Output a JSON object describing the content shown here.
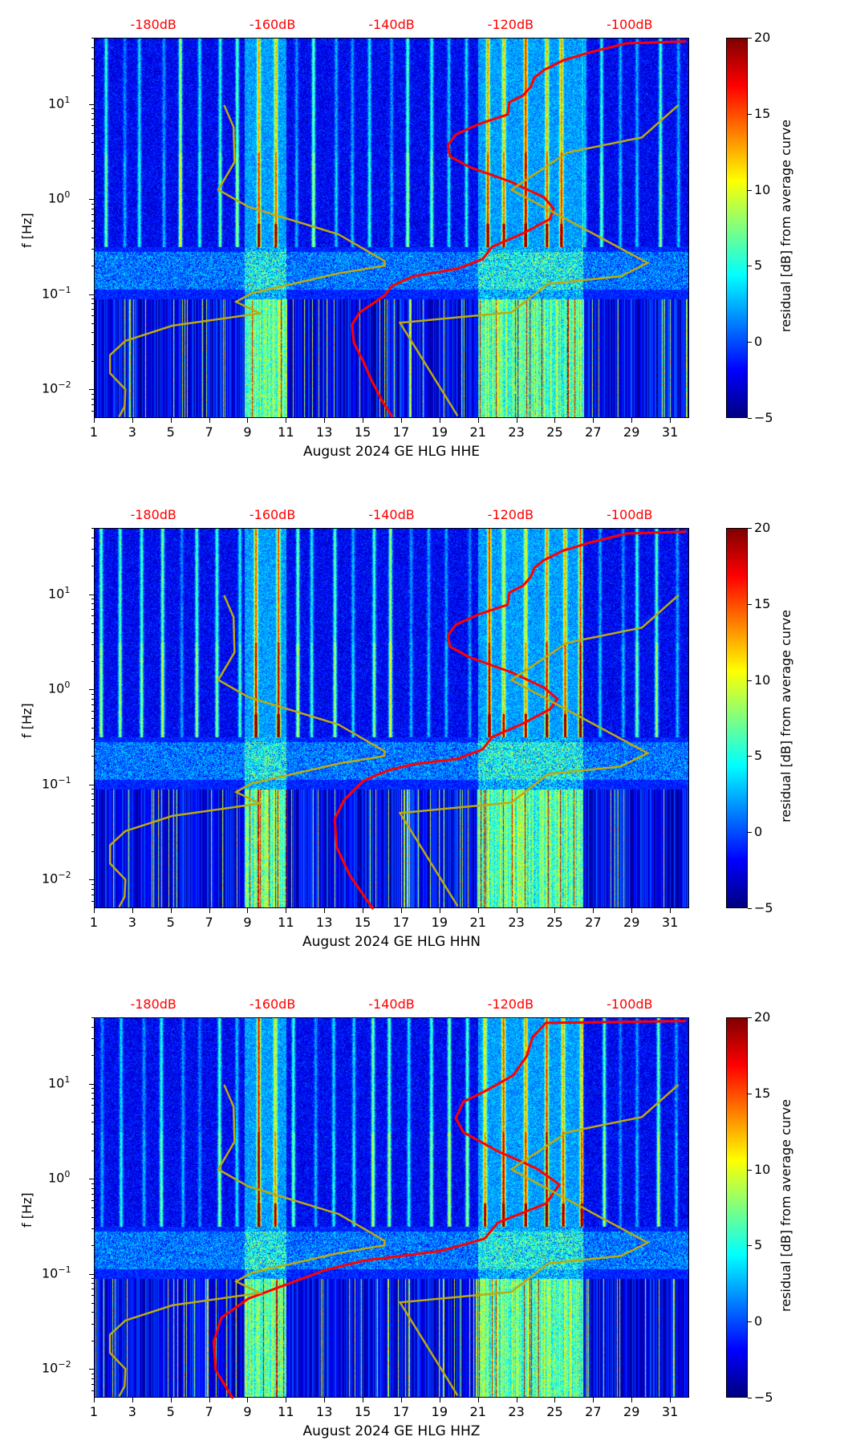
{
  "chart_data": [
    {
      "type": "heatmap",
      "xlabel": "August 2024 GE HLG  HHE",
      "ylabel": "f [Hz]",
      "xlim": [
        1,
        32
      ],
      "ylim_hz": [
        0.005,
        50
      ],
      "yscale": "log",
      "xticks": [
        1,
        3,
        5,
        7,
        9,
        11,
        13,
        15,
        17,
        19,
        21,
        23,
        25,
        27,
        29,
        31
      ],
      "yticks": [
        {
          "base": "10",
          "exp": "1",
          "log10": 1
        },
        {
          "base": "10",
          "exp": "0",
          "log10": 0
        },
        {
          "base": "10",
          "exp": "−1",
          "log10": -1
        },
        {
          "base": "10",
          "exp": "−2",
          "log10": -2
        }
      ],
      "top_axis": {
        "ticks_db": [
          -180,
          -160,
          -140,
          -120,
          -100
        ],
        "labels": [
          "-180dB",
          "-160dB",
          "-140dB",
          "-120dB",
          "-100dB"
        ],
        "range_db": [
          -190,
          -90
        ],
        "color": "#ff0000"
      },
      "colorbar": {
        "label": "residual [dB] from average curve",
        "range": [
          -5,
          20
        ],
        "ticks": [
          "20",
          "15",
          "10",
          "5",
          "0",
          "−5"
        ],
        "colormap": "jet"
      },
      "series": [
        {
          "name": "red-curve",
          "color": "#ff0000",
          "x_day": [
            31.8,
            28.7,
            26.7,
            25.4,
            24.4,
            23.9,
            23.7,
            23.3,
            22.6,
            22.5,
            21.0,
            19.8,
            19.4,
            19.5,
            20.5,
            22.7,
            24.4,
            24.9,
            24.7,
            23.3,
            21.7,
            21.2,
            19.9,
            17.6,
            16.5,
            16.1,
            15.4,
            14.8,
            14.4,
            14.5,
            15.0,
            15.4,
            16.0,
            16.5
          ],
          "log10_f": [
            1.67,
            1.65,
            1.55,
            1.47,
            1.37,
            1.29,
            1.19,
            1.1,
            1.03,
            0.9,
            0.8,
            0.69,
            0.58,
            0.46,
            0.35,
            0.19,
            0.03,
            -0.09,
            -0.2,
            -0.35,
            -0.49,
            -0.62,
            -0.72,
            -0.8,
            -0.9,
            -1.0,
            -1.1,
            -1.18,
            -1.31,
            -1.5,
            -1.7,
            -1.89,
            -2.12,
            -2.28
          ]
        },
        {
          "name": "olive-curve-low",
          "color": "#bcaa10",
          "x_day": [
            7.74,
            8.23,
            8.28,
            7.44,
            9.0,
            13.7,
            16.1,
            16.1,
            13.7,
            9.15,
            8.37,
            9.6,
            5.05,
            2.6,
            1.8,
            1.8,
            2.6,
            2.56,
            2.27
          ],
          "log10_f": [
            1.0,
            0.77,
            0.4,
            0.11,
            -0.07,
            -0.36,
            -0.64,
            -0.69,
            -0.77,
            -0.98,
            -1.07,
            -1.19,
            -1.32,
            -1.48,
            -1.63,
            -1.82,
            -1.99,
            -2.17,
            -2.28
          ]
        },
        {
          "name": "olive-curve-high",
          "color": "#bcaa10",
          "x_day": [
            31.4,
            29.5,
            25.6,
            22.7,
            29.8,
            28.4,
            24.6,
            22.7,
            16.9,
            19.9
          ],
          "log10_f": [
            1.0,
            0.66,
            0.5,
            0.11,
            -0.66,
            -0.8,
            -0.88,
            -1.18,
            -1.29,
            -2.27
          ]
        }
      ]
    },
    {
      "type": "heatmap",
      "xlabel": "August 2024 GE HLG  HHN",
      "ylabel": "f [Hz]",
      "xlim": [
        1,
        32
      ],
      "ylim_hz": [
        0.005,
        50
      ],
      "yscale": "log",
      "xticks": [
        1,
        3,
        5,
        7,
        9,
        11,
        13,
        15,
        17,
        19,
        21,
        23,
        25,
        27,
        29,
        31
      ],
      "yticks": [
        {
          "base": "10",
          "exp": "1",
          "log10": 1
        },
        {
          "base": "10",
          "exp": "0",
          "log10": 0
        },
        {
          "base": "10",
          "exp": "−1",
          "log10": -1
        },
        {
          "base": "10",
          "exp": "−2",
          "log10": -2
        }
      ],
      "top_axis": {
        "ticks_db": [
          -180,
          -160,
          -140,
          -120,
          -100
        ],
        "labels": [
          "-180dB",
          "-160dB",
          "-140dB",
          "-120dB",
          "-100dB"
        ],
        "range_db": [
          -190,
          -90
        ],
        "color": "#ff0000"
      },
      "colorbar": {
        "label": "residual [dB] from average curve",
        "range": [
          -5,
          20
        ],
        "ticks": [
          "20",
          "15",
          "10",
          "5",
          "0",
          "−5"
        ],
        "colormap": "jet"
      },
      "series": [
        {
          "name": "red-curve",
          "color": "#ff0000",
          "x_day": [
            31.8,
            28.7,
            26.7,
            25.4,
            24.4,
            23.9,
            23.7,
            23.3,
            22.6,
            22.5,
            21.0,
            19.8,
            19.4,
            19.5,
            20.5,
            22.7,
            24.4,
            25.1,
            24.7,
            23.3,
            21.7,
            21.2,
            19.9,
            17.5,
            16.3,
            15.0,
            14.0,
            13.5,
            13.6,
            14.3,
            15.5
          ],
          "log10_f": [
            1.67,
            1.65,
            1.55,
            1.47,
            1.37,
            1.29,
            1.19,
            1.1,
            1.03,
            0.9,
            0.8,
            0.69,
            0.58,
            0.46,
            0.35,
            0.19,
            0.03,
            -0.09,
            -0.2,
            -0.35,
            -0.49,
            -0.62,
            -0.72,
            -0.78,
            -0.84,
            -0.95,
            -1.15,
            -1.35,
            -1.65,
            -1.95,
            -2.3
          ]
        },
        {
          "name": "olive-curve-low",
          "color": "#bcaa10",
          "x_day": [
            7.74,
            8.23,
            8.28,
            7.44,
            9.0,
            13.7,
            16.1,
            16.1,
            13.7,
            9.15,
            8.37,
            9.6,
            5.05,
            2.6,
            1.8,
            1.8,
            2.6,
            2.56,
            2.27
          ],
          "log10_f": [
            1.0,
            0.77,
            0.4,
            0.11,
            -0.07,
            -0.36,
            -0.64,
            -0.69,
            -0.77,
            -0.98,
            -1.07,
            -1.19,
            -1.32,
            -1.48,
            -1.63,
            -1.82,
            -1.99,
            -2.17,
            -2.28
          ]
        },
        {
          "name": "olive-curve-high",
          "color": "#bcaa10",
          "x_day": [
            31.4,
            29.5,
            25.6,
            22.7,
            29.8,
            28.4,
            24.6,
            22.7,
            16.9,
            19.9
          ],
          "log10_f": [
            1.0,
            0.66,
            0.5,
            0.11,
            -0.66,
            -0.8,
            -0.88,
            -1.18,
            -1.29,
            -2.27
          ]
        }
      ]
    },
    {
      "type": "heatmap",
      "xlabel": "August 2024 GE HLG  HHZ",
      "ylabel": "f [Hz]",
      "xlim": [
        1,
        32
      ],
      "ylim_hz": [
        0.005,
        50
      ],
      "yscale": "log",
      "xticks": [
        1,
        3,
        5,
        7,
        9,
        11,
        13,
        15,
        17,
        19,
        21,
        23,
        25,
        27,
        29,
        31
      ],
      "yticks": [
        {
          "base": "10",
          "exp": "1",
          "log10": 1
        },
        {
          "base": "10",
          "exp": "0",
          "log10": 0
        },
        {
          "base": "10",
          "exp": "−1",
          "log10": -1
        },
        {
          "base": "10",
          "exp": "−2",
          "log10": -2
        }
      ],
      "top_axis": {
        "ticks_db": [
          -180,
          -160,
          -140,
          -120,
          -100
        ],
        "labels": [
          "-180dB",
          "-160dB",
          "-140dB",
          "-120dB",
          "-100dB"
        ],
        "range_db": [
          -190,
          -90
        ],
        "color": "#ff0000"
      },
      "colorbar": {
        "label": "residual [dB] from average curve",
        "range": [
          -5,
          20
        ],
        "ticks": [
          "20",
          "15",
          "10",
          "5",
          "0",
          "−5"
        ],
        "colormap": "jet"
      },
      "series": [
        {
          "name": "red-curve",
          "color": "#ff0000",
          "x_day": [
            31.8,
            24.5,
            23.8,
            23.5,
            22.8,
            21.5,
            20.2,
            19.8,
            20.2,
            22.0,
            24.0,
            25.2,
            24.5,
            22.0,
            21.3,
            19.0,
            15.0,
            13.0,
            11.0,
            9.0,
            7.6,
            7.2,
            7.3,
            8.2
          ],
          "log10_f": [
            1.67,
            1.65,
            1.5,
            1.3,
            1.1,
            0.95,
            0.82,
            0.65,
            0.5,
            0.3,
            0.12,
            -0.05,
            -0.25,
            -0.45,
            -0.62,
            -0.75,
            -0.85,
            -0.95,
            -1.1,
            -1.25,
            -1.45,
            -1.7,
            -2.0,
            -2.3
          ]
        },
        {
          "name": "olive-curve-low",
          "color": "#bcaa10",
          "x_day": [
            7.74,
            8.23,
            8.28,
            7.44,
            9.0,
            13.7,
            16.1,
            16.1,
            13.7,
            9.15,
            8.37,
            9.6,
            5.05,
            2.6,
            1.8,
            1.8,
            2.6,
            2.56,
            2.27
          ],
          "log10_f": [
            1.0,
            0.77,
            0.4,
            0.11,
            -0.07,
            -0.36,
            -0.64,
            -0.69,
            -0.77,
            -0.98,
            -1.07,
            -1.19,
            -1.32,
            -1.48,
            -1.63,
            -1.82,
            -1.99,
            -2.17,
            -2.28
          ]
        },
        {
          "name": "olive-curve-high",
          "color": "#bcaa10",
          "x_day": [
            31.4,
            29.5,
            25.6,
            22.7,
            29.8,
            28.4,
            24.6,
            22.7,
            16.9,
            19.9
          ],
          "log10_f": [
            1.0,
            0.66,
            0.5,
            0.11,
            -0.66,
            -0.8,
            -0.88,
            -1.18,
            -1.29,
            -2.27
          ]
        }
      ]
    }
  ]
}
